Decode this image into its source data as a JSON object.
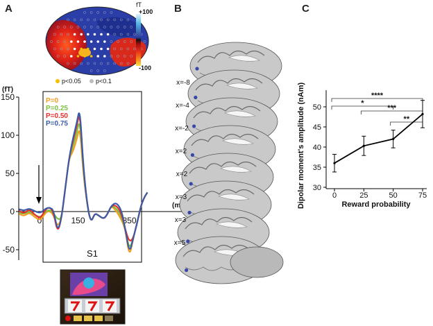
{
  "panels": {
    "a": {
      "letter": "A"
    },
    "b": {
      "letter": "B"
    },
    "c": {
      "letter": "C"
    }
  },
  "topomap": {
    "unit": "fT",
    "scale_max": "+100",
    "scale_min": "-100",
    "legend": [
      {
        "label": "p<0.05",
        "color": "#f2c200"
      },
      {
        "label": "p<0.1",
        "color": "#bdbdbd"
      }
    ]
  },
  "waveform": {
    "y_unit": "(fT)",
    "x_unit": "(ms)",
    "y_ticks": [
      "150",
      "100",
      "50",
      "0",
      "-50"
    ],
    "x_ticks": [
      "0",
      "150",
      "350"
    ],
    "window_label": "S1",
    "series": [
      {
        "name": "P=0",
        "color": "#f39c1e"
      },
      {
        "name": "P=0.25",
        "color": "#7cc142"
      },
      {
        "name": "P=0.50",
        "color": "#e8302a"
      },
      {
        "name": "P=0.75",
        "color": "#3b5ba9"
      }
    ]
  },
  "brain_slices": [
    "x=-8",
    "x=-4",
    "x=-2",
    "x=2",
    "x=2",
    "x=3",
    "x=3",
    "x=5"
  ],
  "chart_data": {
    "type": "line",
    "x": [
      0,
      25,
      50,
      75
    ],
    "values": [
      36,
      40.3,
      42,
      48.2
    ],
    "errors": [
      2.2,
      2.4,
      2.2,
      3.4
    ],
    "xlabel": "Reward probability",
    "ylabel": "Dipolar moment's amplitude (nAm)",
    "ylim": [
      30,
      50
    ],
    "x_ticks": [
      "0",
      "25",
      "50",
      "75"
    ],
    "y_ticks": [
      "30",
      "35",
      "40",
      "45",
      "50"
    ],
    "significance": [
      {
        "label": "****",
        "from": 0,
        "to": 75
      },
      {
        "label": "*",
        "from": 0,
        "to": 50
      },
      {
        "label": "***",
        "from": 25,
        "to": 75
      },
      {
        "label": "**",
        "from": 50,
        "to": 75
      }
    ]
  }
}
